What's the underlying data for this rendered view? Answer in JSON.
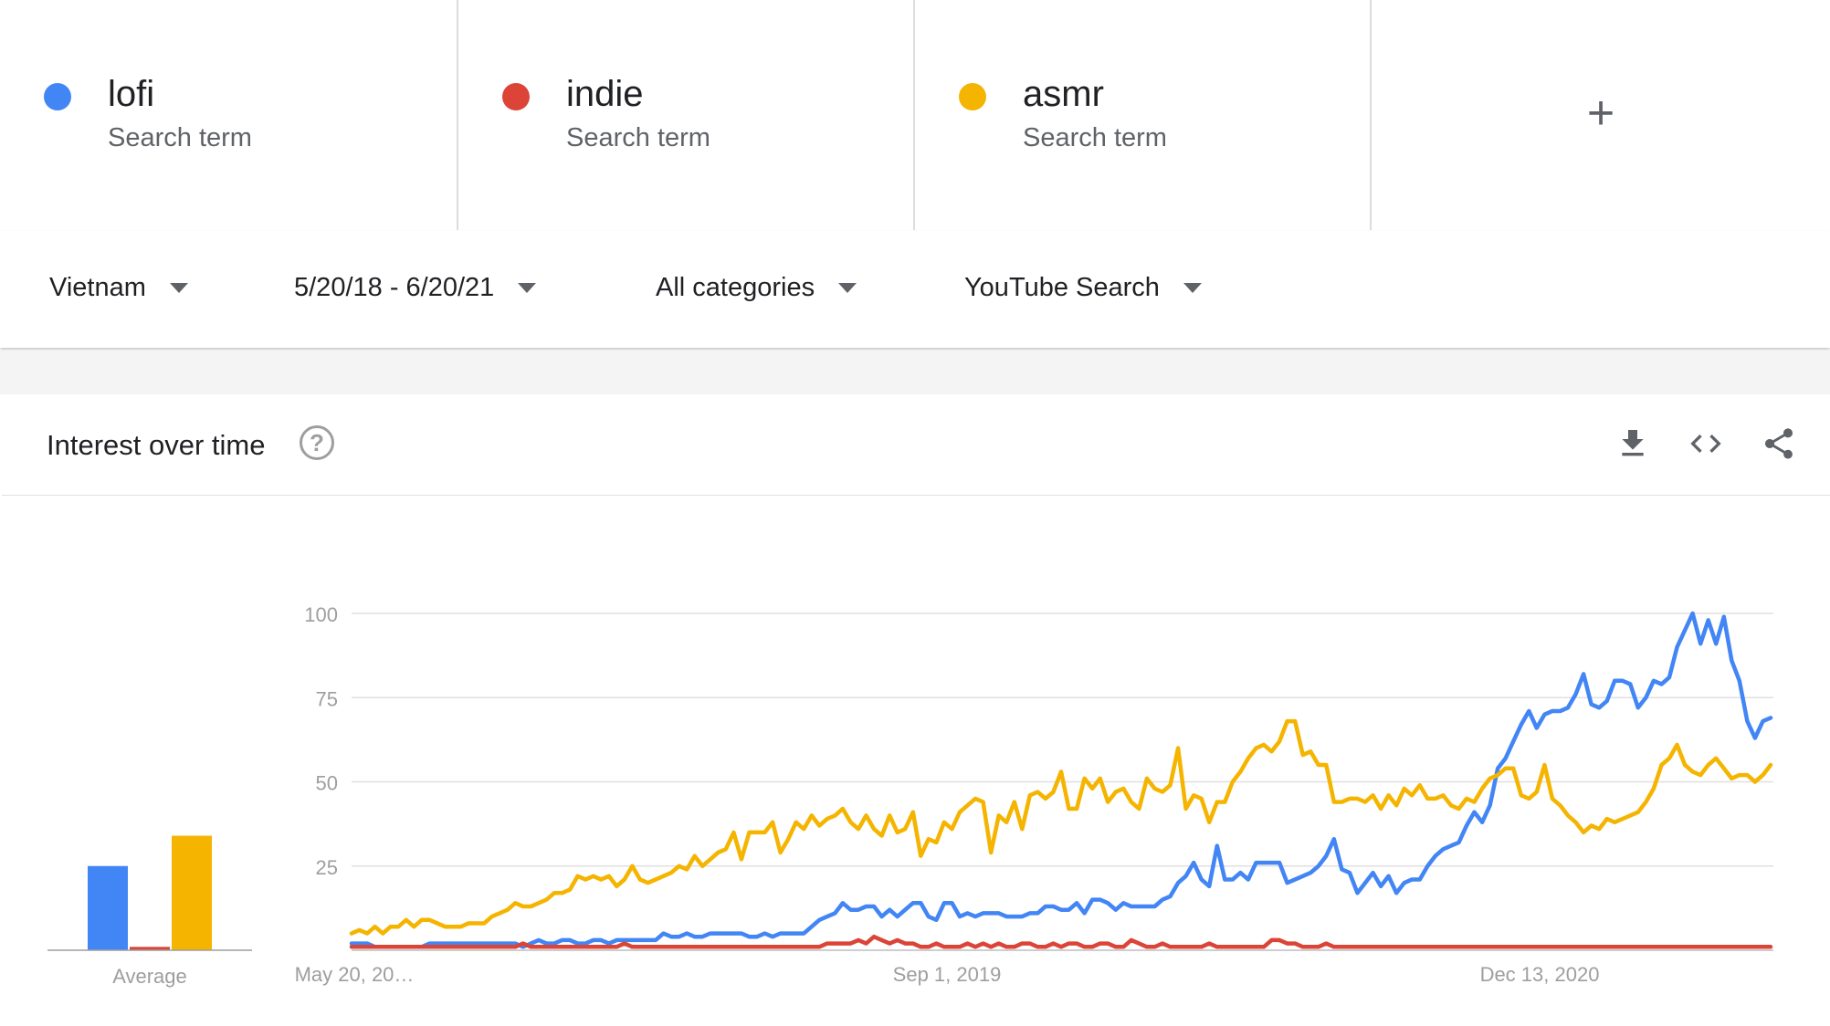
{
  "terms": [
    {
      "name": "lofi",
      "subtitle": "Search term",
      "color": "#4285f4"
    },
    {
      "name": "indie",
      "subtitle": "Search term",
      "color": "#db4437"
    },
    {
      "name": "asmr",
      "subtitle": "Search term",
      "color": "#f4b400"
    }
  ],
  "add_term": {
    "label": "+",
    "icon": "plus-icon"
  },
  "filters": {
    "region": "Vietnam",
    "date_range": "5/20/18 - 6/20/21",
    "category": "All categories",
    "search_type": "YouTube Search"
  },
  "widget": {
    "title": "Interest over time",
    "help_label": "?",
    "icons": [
      "download-icon",
      "embed-code-icon",
      "share-icon"
    ]
  },
  "chart_data": {
    "type": "line",
    "ylim": [
      0,
      100
    ],
    "yticks": [
      "25",
      "50",
      "75",
      "100"
    ],
    "grid": true,
    "x_tick_labels": [
      "May 20, 20…",
      "Sep 1, 2019",
      "Dec 13, 2020"
    ],
    "average": {
      "label": "Average",
      "values": [
        25,
        1,
        34
      ]
    },
    "series": [
      {
        "name": "lofi",
        "color": "#4285f4",
        "values": [
          2,
          2,
          2,
          1,
          1,
          1,
          1,
          1,
          1,
          1,
          2,
          2,
          2,
          2,
          2,
          2,
          2,
          2,
          2,
          2,
          2,
          2,
          1,
          2,
          3,
          2,
          2,
          3,
          3,
          2,
          2,
          3,
          3,
          2,
          3,
          3,
          3,
          3,
          3,
          3,
          5,
          4,
          4,
          5,
          4,
          4,
          5,
          5,
          5,
          5,
          5,
          4,
          4,
          5,
          4,
          5,
          5,
          5,
          5,
          7,
          9,
          10,
          11,
          14,
          12,
          12,
          13,
          13,
          10,
          12,
          10,
          12,
          14,
          14,
          10,
          9,
          14,
          14,
          10,
          11,
          10,
          11,
          11,
          11,
          10,
          10,
          10,
          11,
          11,
          13,
          13,
          12,
          12,
          14,
          11,
          15,
          15,
          14,
          12,
          14,
          13,
          13,
          13,
          13,
          15,
          16,
          20,
          22,
          26,
          21,
          19,
          31,
          21,
          21,
          23,
          21,
          26,
          26,
          26,
          26,
          20,
          21,
          22,
          23,
          25,
          28,
          33,
          24,
          23,
          17,
          20,
          23,
          19,
          22,
          17,
          20,
          21,
          21,
          25,
          28,
          30,
          31,
          32,
          37,
          41,
          38,
          43,
          54,
          57,
          62,
          67,
          71,
          66,
          70,
          71,
          71,
          72,
          76,
          82,
          73,
          72,
          74,
          80,
          80,
          79,
          72,
          75,
          80,
          79,
          81,
          90,
          95,
          100,
          91,
          98,
          91,
          99,
          86,
          80,
          68,
          63,
          68,
          69
        ],
        "points": 183
      },
      {
        "name": "indie",
        "color": "#db4437",
        "values": [
          1,
          1,
          1,
          1,
          1,
          1,
          1,
          1,
          1,
          1,
          1,
          1,
          1,
          1,
          1,
          1,
          1,
          1,
          1,
          1,
          1,
          1,
          2,
          1,
          1,
          1,
          1,
          1,
          1,
          1,
          1,
          1,
          1,
          1,
          1,
          2,
          1,
          1,
          1,
          1,
          1,
          1,
          1,
          1,
          1,
          1,
          1,
          1,
          1,
          1,
          1,
          1,
          1,
          1,
          1,
          1,
          1,
          1,
          1,
          1,
          1,
          2,
          2,
          2,
          2,
          3,
          2,
          4,
          3,
          2,
          3,
          2,
          2,
          1,
          1,
          2,
          1,
          1,
          1,
          2,
          1,
          2,
          1,
          2,
          1,
          1,
          2,
          2,
          1,
          1,
          2,
          1,
          2,
          2,
          1,
          1,
          2,
          2,
          1,
          1,
          3,
          2,
          1,
          1,
          2,
          1,
          1,
          1,
          1,
          1,
          2,
          1,
          1,
          1,
          1,
          1,
          1,
          1,
          3,
          3,
          2,
          2,
          1,
          1,
          1,
          2,
          1,
          1,
          1,
          1,
          1,
          1,
          1,
          1,
          1,
          1,
          1,
          1,
          1,
          1,
          1,
          1,
          1,
          1,
          1,
          1,
          1,
          1,
          1,
          1,
          1,
          1,
          1,
          1,
          1,
          1,
          1,
          1,
          1,
          1,
          1,
          1,
          1,
          1,
          1,
          1,
          1,
          1,
          1,
          1,
          1,
          1,
          1,
          1,
          1,
          1,
          1,
          1,
          1,
          1,
          1,
          1,
          1
        ]
      },
      {
        "name": "asmr",
        "color": "#f4b400",
        "values": [
          5,
          6,
          5,
          7,
          5,
          7,
          7,
          9,
          7,
          9,
          9,
          8,
          7,
          7,
          7,
          8,
          8,
          8,
          10,
          11,
          12,
          14,
          13,
          13,
          14,
          15,
          17,
          17,
          18,
          22,
          21,
          22,
          21,
          22,
          19,
          21,
          25,
          21,
          20,
          21,
          22,
          23,
          25,
          24,
          28,
          25,
          27,
          29,
          30,
          35,
          27,
          35,
          35,
          35,
          38,
          29,
          33,
          38,
          36,
          40,
          37,
          39,
          40,
          42,
          38,
          36,
          40,
          36,
          34,
          40,
          35,
          36,
          41,
          28,
          33,
          32,
          38,
          36,
          41,
          43,
          45,
          44,
          29,
          40,
          38,
          44,
          36,
          46,
          47,
          45,
          47,
          53,
          42,
          42,
          51,
          48,
          51,
          44,
          47,
          48,
          44,
          42,
          51,
          48,
          47,
          49,
          60,
          42,
          46,
          45,
          38,
          44,
          44,
          50,
          53,
          57,
          60,
          61,
          59,
          62,
          68,
          68,
          58,
          59,
          55,
          55,
          44,
          44,
          45,
          45,
          44,
          46,
          42,
          46,
          43,
          48,
          46,
          49,
          45,
          45,
          46,
          43,
          42,
          45,
          44,
          48,
          51,
          52,
          54,
          54,
          46,
          45,
          47,
          55,
          45,
          43,
          40,
          38,
          35,
          37,
          36,
          39,
          38,
          39,
          40,
          41,
          44,
          48,
          55,
          57,
          61,
          55,
          53,
          52,
          55,
          57,
          54,
          51,
          52,
          52,
          50,
          52,
          55
        ]
      }
    ]
  }
}
